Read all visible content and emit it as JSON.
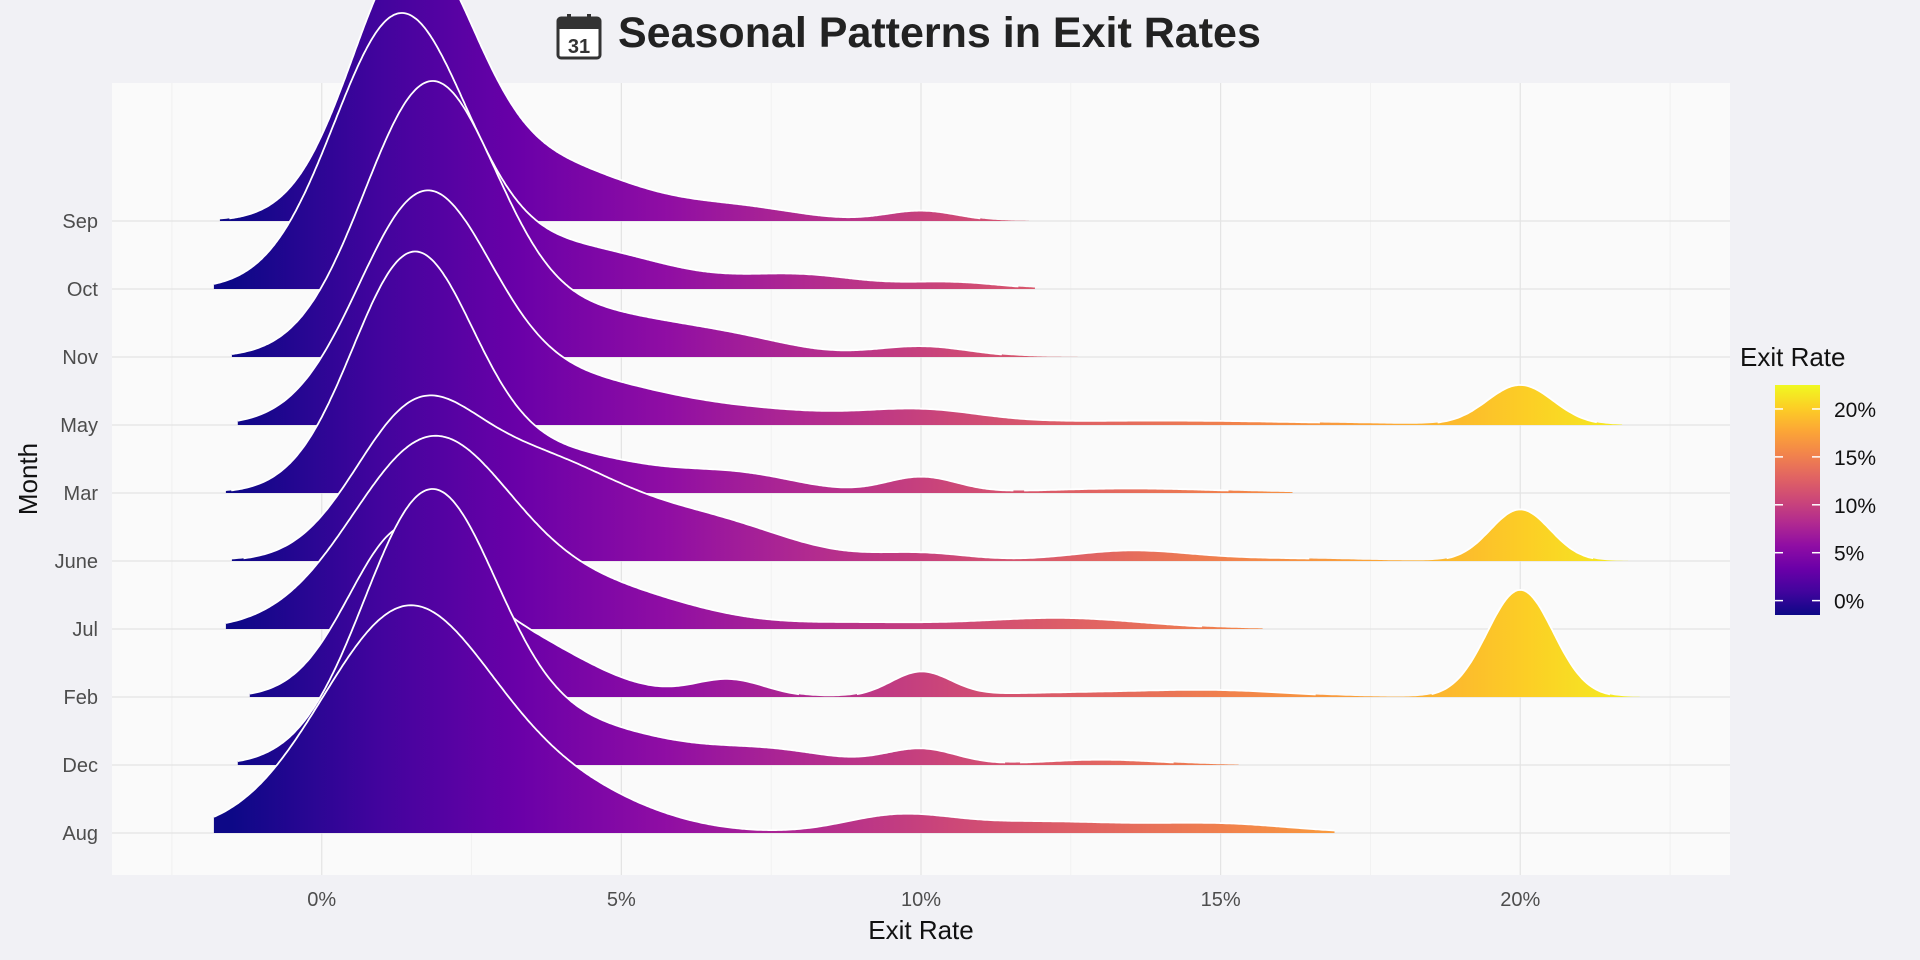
{
  "chart_data": {
    "type": "ridgeline",
    "title": "Seasonal Patterns in Exit Rates",
    "title_icon": "calendar-icon",
    "title_icon_text": "31",
    "xlabel": "Exit Rate",
    "ylabel": "Month",
    "x_unit": "%",
    "xlim": [
      -3.5,
      23.5
    ],
    "x_ticks": [
      0,
      5,
      10,
      15,
      20
    ],
    "x_tick_labels": [
      "0%",
      "5%",
      "10%",
      "15%",
      "20%"
    ],
    "categories": [
      "Aug",
      "Dec",
      "Feb",
      "Jul",
      "June",
      "Mar",
      "May",
      "Nov",
      "Oct",
      "Sep"
    ],
    "grid": true,
    "colormap": "plasma",
    "legend": {
      "title": "Exit Rate",
      "placement": "right",
      "range": [
        -1.5,
        22.5
      ],
      "ticks": [
        0,
        5,
        10,
        15,
        20
      ],
      "tick_labels": [
        "0%",
        "5%",
        "10%",
        "15%",
        "20%"
      ]
    },
    "series": [
      {
        "name": "Aug",
        "peak_height": 1.65,
        "range": [
          -1.8,
          16.9
        ],
        "components": [
          [
            1.4,
            1.4,
            1.0
          ],
          [
            4.0,
            1.4,
            0.18
          ],
          [
            9.6,
            0.9,
            0.075
          ],
          [
            12.0,
            1.4,
            0.05
          ],
          [
            15.0,
            1.2,
            0.04
          ],
          [
            20.0,
            0.4,
            0.09
          ]
        ]
      },
      {
        "name": "Dec",
        "peak_height": 2.0,
        "range": [
          -1.4,
          15.3
        ],
        "components": [
          [
            1.8,
            1.1,
            1.0
          ],
          [
            4.3,
            1.5,
            0.14
          ],
          [
            10.0,
            0.6,
            0.06
          ],
          [
            7.5,
            1.0,
            0.05
          ],
          [
            13.0,
            1.0,
            0.02
          ],
          [
            20.0,
            0.4,
            0.15
          ]
        ]
      },
      {
        "name": "Feb",
        "peak_height": 1.25,
        "range": [
          -1.2,
          22.0
        ],
        "components": [
          [
            1.3,
            0.9,
            1.0
          ],
          [
            3.0,
            1.3,
            0.45
          ],
          [
            6.8,
            0.6,
            0.12
          ],
          [
            10.0,
            0.5,
            0.17
          ],
          [
            12.5,
            1.6,
            0.03
          ],
          [
            15.0,
            1.2,
            0.04
          ],
          [
            20.0,
            0.55,
            0.75
          ]
        ]
      },
      {
        "name": "Jul",
        "peak_height": 1.4,
        "range": [
          -1.6,
          15.7
        ],
        "components": [
          [
            1.8,
            1.3,
            1.0
          ],
          [
            4.5,
            1.6,
            0.22
          ],
          [
            12.3,
            1.4,
            0.06
          ],
          [
            9.0,
            1.2,
            0.03
          ],
          [
            20.0,
            0.5,
            0.2
          ]
        ]
      },
      {
        "name": "June",
        "peak_height": 1.2,
        "range": [
          -1.5,
          21.8
        ],
        "components": [
          [
            1.5,
            1.0,
            1.0
          ],
          [
            3.6,
            1.4,
            0.75
          ],
          [
            6.5,
            1.3,
            0.28
          ],
          [
            10.0,
            0.8,
            0.06
          ],
          [
            13.5,
            1.0,
            0.08
          ],
          [
            16.0,
            1.2,
            0.02
          ],
          [
            20.0,
            0.5,
            0.4
          ]
        ]
      },
      {
        "name": "Mar",
        "peak_height": 1.75,
        "range": [
          -1.6,
          16.2
        ],
        "components": [
          [
            1.5,
            1.0,
            1.0
          ],
          [
            3.8,
            1.6,
            0.18
          ],
          [
            10.0,
            0.6,
            0.07
          ],
          [
            7.0,
            1.0,
            0.07
          ],
          [
            13.5,
            1.5,
            0.02
          ],
          [
            20.0,
            0.5,
            0.17
          ]
        ]
      },
      {
        "name": "May",
        "peak_height": 1.7,
        "range": [
          -1.4,
          21.7
        ],
        "components": [
          [
            1.7,
            1.1,
            1.0
          ],
          [
            4.2,
            1.6,
            0.2
          ],
          [
            10.0,
            1.0,
            0.06
          ],
          [
            7.5,
            1.3,
            0.05
          ],
          [
            14.0,
            2.5,
            0.02
          ],
          [
            20.0,
            0.55,
            0.18
          ]
        ]
      },
      {
        "name": "Nov",
        "peak_height": 2.0,
        "range": [
          -1.5,
          14.8
        ],
        "components": [
          [
            1.8,
            1.1,
            1.0
          ],
          [
            4.5,
            1.6,
            0.16
          ],
          [
            10.0,
            0.8,
            0.04
          ],
          [
            7.0,
            1.0,
            0.04
          ],
          [
            20.0,
            0.55,
            0.12
          ]
        ]
      },
      {
        "name": "Oct",
        "peak_height": 2.0,
        "range": [
          -1.8,
          11.9
        ],
        "components": [
          [
            1.3,
            1.1,
            1.0
          ],
          [
            4.2,
            1.5,
            0.15
          ],
          [
            8.0,
            1.0,
            0.05
          ],
          [
            10.5,
            0.8,
            0.025
          ],
          [
            20.0,
            0.5,
            0.03
          ]
        ]
      },
      {
        "name": "Sep",
        "peak_height": 2.0,
        "range": [
          -1.7,
          11.8
        ],
        "components": [
          [
            1.5,
            1.0,
            1.0
          ],
          [
            3.7,
            1.5,
            0.22
          ],
          [
            7.0,
            1.0,
            0.045
          ],
          [
            10.0,
            0.6,
            0.04
          ],
          [
            15.0,
            0.15,
            0.006
          ],
          [
            20.0,
            0.45,
            0.035
          ]
        ]
      }
    ]
  }
}
